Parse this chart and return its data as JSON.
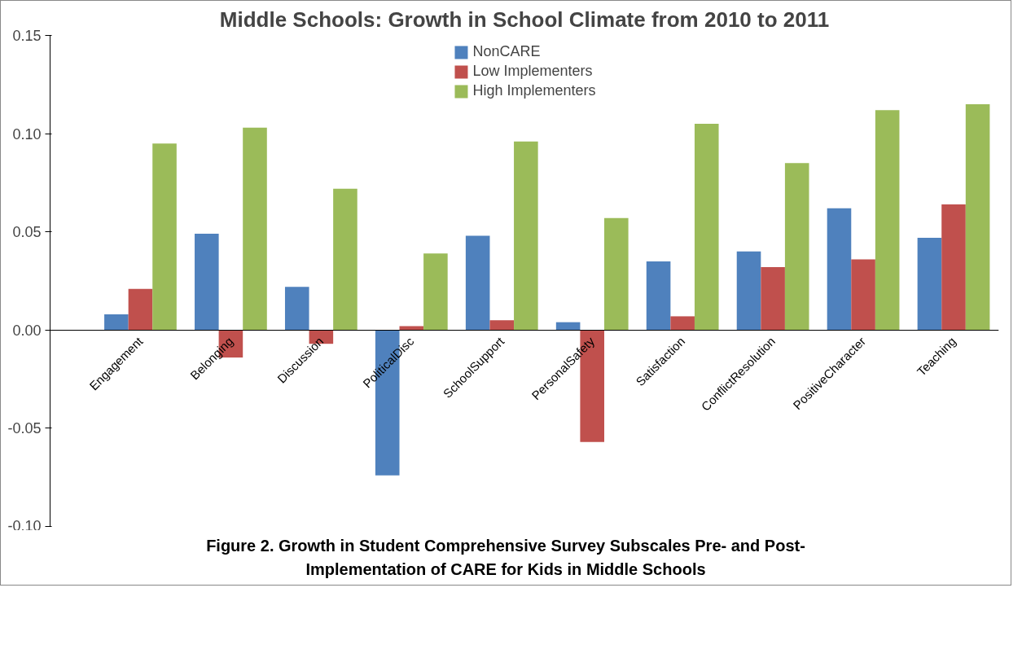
{
  "chart_data": {
    "type": "bar",
    "title": "Middle Schools: Growth in School Climate from 2010 to 2011",
    "categories": [
      "Engagement",
      "Belonging",
      "Discussion",
      "PoliticalDisc",
      "SchoolSupport",
      "PersonalSafety",
      "Satisfaction",
      "ConflictResolution",
      "PositiveCharacter",
      "Teaching"
    ],
    "series": [
      {
        "name": "NonCARE",
        "color": "#4f81bd",
        "values": [
          0.008,
          0.049,
          0.022,
          -0.074,
          0.048,
          0.004,
          0.035,
          0.04,
          0.062,
          0.047
        ]
      },
      {
        "name": "Low Implementers",
        "color": "#c0504d",
        "values": [
          0.021,
          -0.014,
          -0.007,
          0.002,
          0.005,
          -0.057,
          0.007,
          0.032,
          0.036,
          0.064
        ]
      },
      {
        "name": "High Implementers",
        "color": "#9bbb59",
        "values": [
          0.095,
          0.103,
          0.072,
          0.039,
          0.096,
          0.057,
          0.105,
          0.085,
          0.112,
          0.115
        ]
      }
    ],
    "ylim": [
      -0.1,
      0.15
    ],
    "yticks": [
      {
        "value": -0.1,
        "label": "-0.10"
      },
      {
        "value": -0.05,
        "label": "-0.05"
      },
      {
        "value": 0,
        "label": "0.00"
      },
      {
        "value": 0.05,
        "label": "0.05"
      },
      {
        "value": 0.1,
        "label": "0.10"
      },
      {
        "value": 0.15,
        "label": "0.15"
      }
    ],
    "grid": false,
    "legend": "top",
    "annotations": [
      "Figure 2. Growth in Student Comprehensive Survey Subscales Pre- and Post-Implementation of CARE for Kids in Middle Schools"
    ]
  }
}
